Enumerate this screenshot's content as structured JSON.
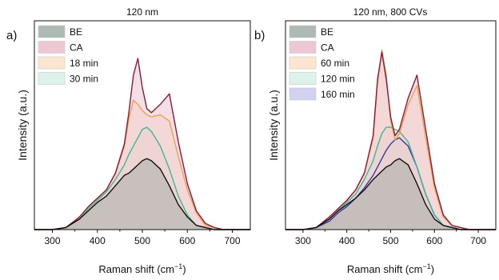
{
  "chart_data": [
    {
      "type": "area",
      "panel_label": "a)",
      "title": "120 nm",
      "xlabel": "Raman shift (cm",
      "xlabel_sup": "−1",
      "xlabel_tail": ")",
      "ylabel": "Intensity (a.u.)",
      "xlim": [
        260,
        740
      ],
      "ylim": [
        0,
        1.0
      ],
      "xticks": [
        300,
        400,
        500,
        600,
        700
      ],
      "yticks_shown": false,
      "legend_position": "top-left",
      "x": [
        260,
        300,
        330,
        360,
        380,
        400,
        420,
        440,
        460,
        470,
        480,
        490,
        500,
        510,
        520,
        540,
        560,
        580,
        600,
        620,
        640,
        660,
        680,
        700,
        740
      ],
      "series": [
        {
          "name": "BE",
          "stroke": "#111111",
          "fill": "#9aa7a0",
          "values": [
            0,
            0,
            0.01,
            0.05,
            0.09,
            0.13,
            0.16,
            0.21,
            0.26,
            0.27,
            0.29,
            0.31,
            0.33,
            0.34,
            0.33,
            0.29,
            0.21,
            0.12,
            0.06,
            0.02,
            0.01,
            0,
            0,
            0,
            0
          ]
        },
        {
          "name": "CA",
          "stroke": "#8b1a3a",
          "fill": "#e8b9c8",
          "values": [
            0,
            0,
            0.01,
            0.06,
            0.11,
            0.15,
            0.19,
            0.27,
            0.41,
            0.56,
            0.74,
            0.82,
            0.68,
            0.58,
            0.56,
            0.6,
            0.65,
            0.42,
            0.22,
            0.09,
            0.03,
            0.01,
            0,
            0,
            0
          ]
        },
        {
          "name": "18 min",
          "stroke": "#f0a050",
          "fill": "#fbe0c4",
          "values": [
            0,
            0,
            0.01,
            0.06,
            0.11,
            0.15,
            0.19,
            0.27,
            0.4,
            0.53,
            0.62,
            0.6,
            0.57,
            0.55,
            0.54,
            0.55,
            0.52,
            0.35,
            0.19,
            0.08,
            0.02,
            0.01,
            0,
            0,
            0
          ]
        },
        {
          "name": "30 min",
          "stroke": "#3cb896",
          "fill": "#d5efe6",
          "values": [
            0,
            0,
            0.01,
            0.05,
            0.1,
            0.14,
            0.18,
            0.24,
            0.31,
            0.36,
            0.4,
            0.44,
            0.48,
            0.49,
            0.47,
            0.4,
            0.29,
            0.16,
            0.07,
            0.02,
            0.01,
            0,
            0,
            0,
            0
          ]
        }
      ]
    },
    {
      "type": "area",
      "panel_label": "b)",
      "title": "120 nm, 800 CVs",
      "xlabel": "Raman shift (cm",
      "xlabel_sup": "−1",
      "xlabel_tail": ")",
      "ylabel": "Intensity (a.u.)",
      "xlim": [
        260,
        740
      ],
      "ylim": [
        0,
        1.0
      ],
      "xticks": [
        300,
        400,
        500,
        600,
        700
      ],
      "yticks_shown": false,
      "legend_position": "top-left",
      "x": [
        260,
        300,
        330,
        360,
        380,
        400,
        420,
        440,
        460,
        470,
        480,
        490,
        500,
        510,
        520,
        540,
        560,
        580,
        600,
        620,
        640,
        660,
        680,
        700,
        740
      ],
      "series": [
        {
          "name": "BE",
          "stroke": "#111111",
          "fill": "#9aa7a0",
          "values": [
            0,
            0,
            0.01,
            0.05,
            0.09,
            0.12,
            0.15,
            0.19,
            0.24,
            0.26,
            0.28,
            0.3,
            0.31,
            0.33,
            0.34,
            0.31,
            0.22,
            0.12,
            0.05,
            0.02,
            0.01,
            0,
            0,
            0,
            0
          ]
        },
        {
          "name": "CA",
          "stroke": "#8b1a3a",
          "fill": "#e8b9c8",
          "values": [
            0,
            0,
            0.01,
            0.06,
            0.1,
            0.14,
            0.19,
            0.27,
            0.45,
            0.72,
            0.85,
            0.72,
            0.54,
            0.45,
            0.48,
            0.63,
            0.74,
            0.48,
            0.22,
            0.07,
            0.02,
            0.01,
            0,
            0,
            0
          ]
        },
        {
          "name": "60 min",
          "stroke": "#f0a050",
          "fill": "#fbe0c4",
          "values": [
            0,
            0,
            0.01,
            0.06,
            0.1,
            0.14,
            0.19,
            0.27,
            0.44,
            0.7,
            0.86,
            0.74,
            0.52,
            0.43,
            0.46,
            0.6,
            0.69,
            0.44,
            0.2,
            0.06,
            0.02,
            0.01,
            0,
            0,
            0
          ]
        },
        {
          "name": "120 min",
          "stroke": "#3cb896",
          "fill": "#d5efe6",
          "values": [
            0,
            0,
            0.01,
            0.05,
            0.09,
            0.13,
            0.17,
            0.24,
            0.33,
            0.4,
            0.46,
            0.49,
            0.49,
            0.48,
            0.47,
            0.42,
            0.3,
            0.17,
            0.07,
            0.02,
            0.01,
            0,
            0,
            0,
            0
          ]
        },
        {
          "name": "160 min",
          "stroke": "#3a3b9a",
          "fill": "#c8c6ec",
          "values": [
            0,
            0,
            0.01,
            0.04,
            0.08,
            0.11,
            0.15,
            0.2,
            0.26,
            0.3,
            0.34,
            0.38,
            0.41,
            0.43,
            0.44,
            0.4,
            0.3,
            0.17,
            0.07,
            0.02,
            0.01,
            0,
            0,
            0,
            0
          ]
        }
      ]
    }
  ]
}
